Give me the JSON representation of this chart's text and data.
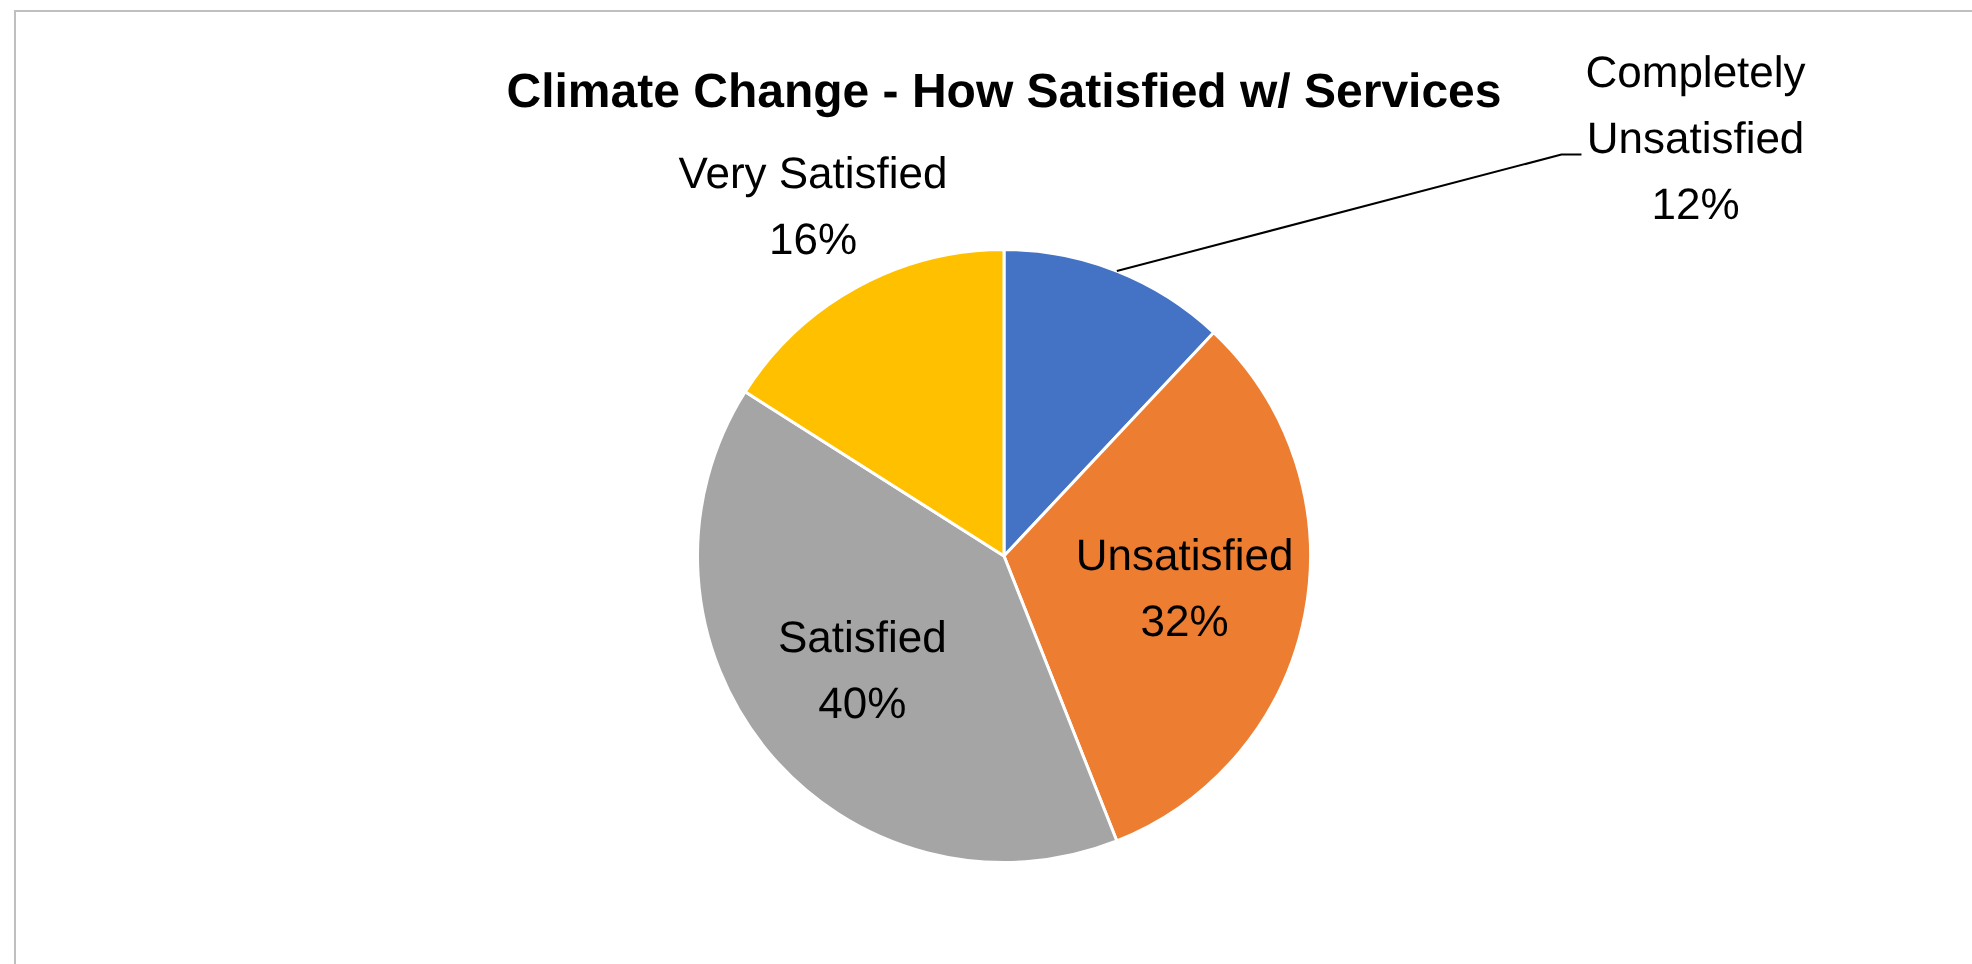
{
  "chart_data": {
    "type": "pie",
    "title": "Climate Change - How Satisfied w/ Services",
    "categories": [
      "Completely Unsatisfied",
      "Unsatisfied",
      "Satisfied",
      "Very Satisfied"
    ],
    "values": [
      12,
      32,
      40,
      16
    ],
    "colors": [
      "#4472c4",
      "#ed7d31",
      "#a5a5a5",
      "#ffc000"
    ],
    "value_labels": [
      "12%",
      "32%",
      "40%",
      "16%"
    ]
  }
}
